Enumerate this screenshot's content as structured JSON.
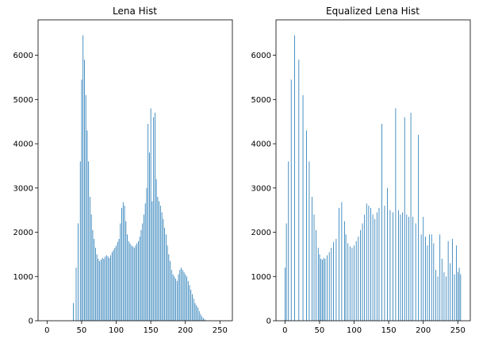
{
  "figure": {
    "background": "#ffffff"
  },
  "chart_data": [
    {
      "type": "bar",
      "title": "Lena Hist",
      "xlabel": "",
      "ylabel": "",
      "xlim": [
        -13,
        268
      ],
      "ylim": [
        0,
        6800
      ],
      "xticks": [
        0,
        50,
        100,
        150,
        200,
        250
      ],
      "yticks": [
        0,
        1000,
        2000,
        3000,
        4000,
        5000,
        6000
      ],
      "grid": false,
      "color": "#1f77b4",
      "series": [
        {
          "x": [
            38,
            42,
            45,
            48,
            50,
            52,
            54,
            56,
            58,
            60,
            62,
            64,
            66,
            68,
            70,
            72,
            74,
            76,
            78,
            80,
            82,
            84,
            86,
            88,
            90,
            92,
            94,
            96,
            98,
            100,
            102,
            104,
            106,
            108,
            110,
            112,
            114,
            116,
            118,
            120,
            122,
            124,
            126,
            128,
            130,
            132,
            134,
            136,
            138,
            140,
            142,
            144,
            146,
            148,
            150,
            152,
            154,
            156,
            158,
            160,
            162,
            164,
            166,
            168,
            170,
            172,
            174,
            176,
            178,
            180,
            182,
            184,
            186,
            188,
            190,
            192,
            194,
            196,
            198,
            200,
            202,
            204,
            206,
            208,
            210,
            212,
            214,
            216,
            218,
            220,
            222,
            224,
            226,
            228
          ],
          "values": [
            400,
            1200,
            2200,
            3600,
            5450,
            6450,
            5900,
            5100,
            4300,
            3600,
            2800,
            2400,
            2050,
            1850,
            1650,
            1500,
            1400,
            1350,
            1380,
            1420,
            1400,
            1450,
            1480,
            1450,
            1420,
            1480,
            1550,
            1600,
            1650,
            1700,
            1780,
            1850,
            2200,
            2550,
            2680,
            2600,
            2250,
            1950,
            1800,
            1750,
            1700,
            1680,
            1650,
            1700,
            1750,
            1800,
            1900,
            2050,
            2200,
            2400,
            2650,
            3000,
            4450,
            3800,
            4800,
            2700,
            4600,
            4700,
            3200,
            2800,
            2700,
            2600,
            2450,
            2300,
            2100,
            1950,
            1700,
            1500,
            1350,
            1150,
            1050,
            1000,
            950,
            900,
            1050,
            1150,
            1200,
            1150,
            1100,
            1050,
            1000,
            900,
            800,
            700,
            600,
            500,
            400,
            350,
            300,
            220,
            150,
            100,
            60,
            30
          ]
        }
      ]
    },
    {
      "type": "bar",
      "title": "Equalized Lena Hist",
      "xlabel": "",
      "ylabel": "",
      "xlim": [
        -13,
        268
      ],
      "ylim": [
        0,
        6800
      ],
      "xticks": [
        0,
        50,
        100,
        150,
        200,
        250
      ],
      "yticks": [
        0,
        1000,
        2000,
        3000,
        4000,
        5000,
        6000
      ],
      "grid": false,
      "color": "#1f77b4",
      "series": [
        {
          "x": [
            0,
            2,
            5,
            9,
            14,
            20,
            26,
            31,
            35,
            39,
            42,
            45,
            48,
            50,
            52,
            54,
            56,
            58,
            61,
            64,
            67,
            70,
            74,
            78,
            82,
            86,
            88,
            91,
            94,
            97,
            100,
            103,
            106,
            109,
            112,
            115,
            118,
            121,
            124,
            127,
            130,
            133,
            136,
            140,
            144,
            148,
            152,
            156,
            160,
            164,
            167,
            170,
            173,
            176,
            179,
            182,
            185,
            189,
            193,
            197,
            200,
            203,
            206,
            209,
            212,
            215,
            218,
            221,
            224,
            227,
            230,
            233,
            236,
            239,
            242,
            245,
            248,
            250,
            252,
            254
          ],
          "values": [
            1200,
            2200,
            3600,
            5450,
            6450,
            5900,
            5100,
            4300,
            3600,
            2800,
            2400,
            2050,
            1650,
            1500,
            1400,
            1380,
            1420,
            1400,
            1480,
            1550,
            1650,
            1780,
            1850,
            2550,
            2680,
            2250,
            1950,
            1750,
            1680,
            1650,
            1700,
            1800,
            1900,
            2050,
            2200,
            2400,
            2650,
            2600,
            2550,
            2400,
            2300,
            2450,
            2550,
            4450,
            2600,
            3000,
            2500,
            2450,
            4800,
            2500,
            2400,
            2450,
            4600,
            2400,
            2350,
            4700,
            2350,
            2200,
            4200,
            1950,
            2350,
            1900,
            1700,
            1950,
            1950,
            1750,
            1150,
            1000,
            1950,
            1400,
            1100,
            1000,
            1800,
            1300,
            1850,
            1050,
            1700,
            1100,
            1200,
            1050
          ]
        }
      ]
    }
  ]
}
